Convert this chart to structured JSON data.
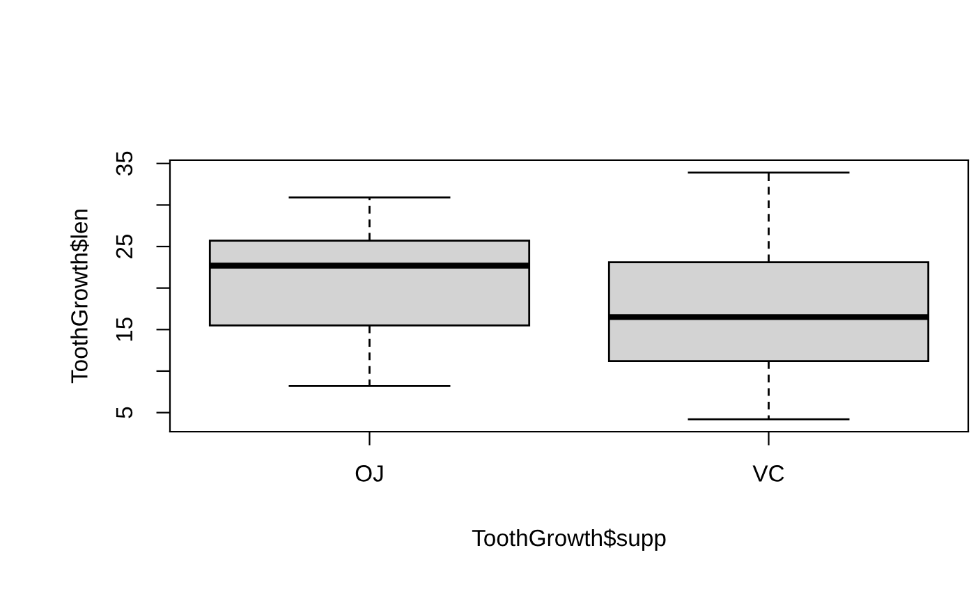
{
  "chart_data": {
    "type": "box",
    "xlabel": "ToothGrowth$supp",
    "ylabel": "ToothGrowth$len",
    "categories": [
      "OJ",
      "VC"
    ],
    "color": "#d3d3d3",
    "boxes": [
      {
        "low": 8.2,
        "q1": 15.5,
        "median": 22.7,
        "q3": 25.7,
        "high": 30.9
      },
      {
        "low": 4.2,
        "q1": 11.2,
        "median": 16.5,
        "q3": 23.1,
        "high": 33.9
      }
    ],
    "ylim": [
      2.7,
      35.4
    ],
    "yticks": [
      5,
      {
        "value": 10,
        "label": null
      },
      15,
      {
        "value": 20,
        "label": null
      },
      25,
      {
        "value": 30,
        "label": null
      },
      35
    ],
    "grid": false
  }
}
